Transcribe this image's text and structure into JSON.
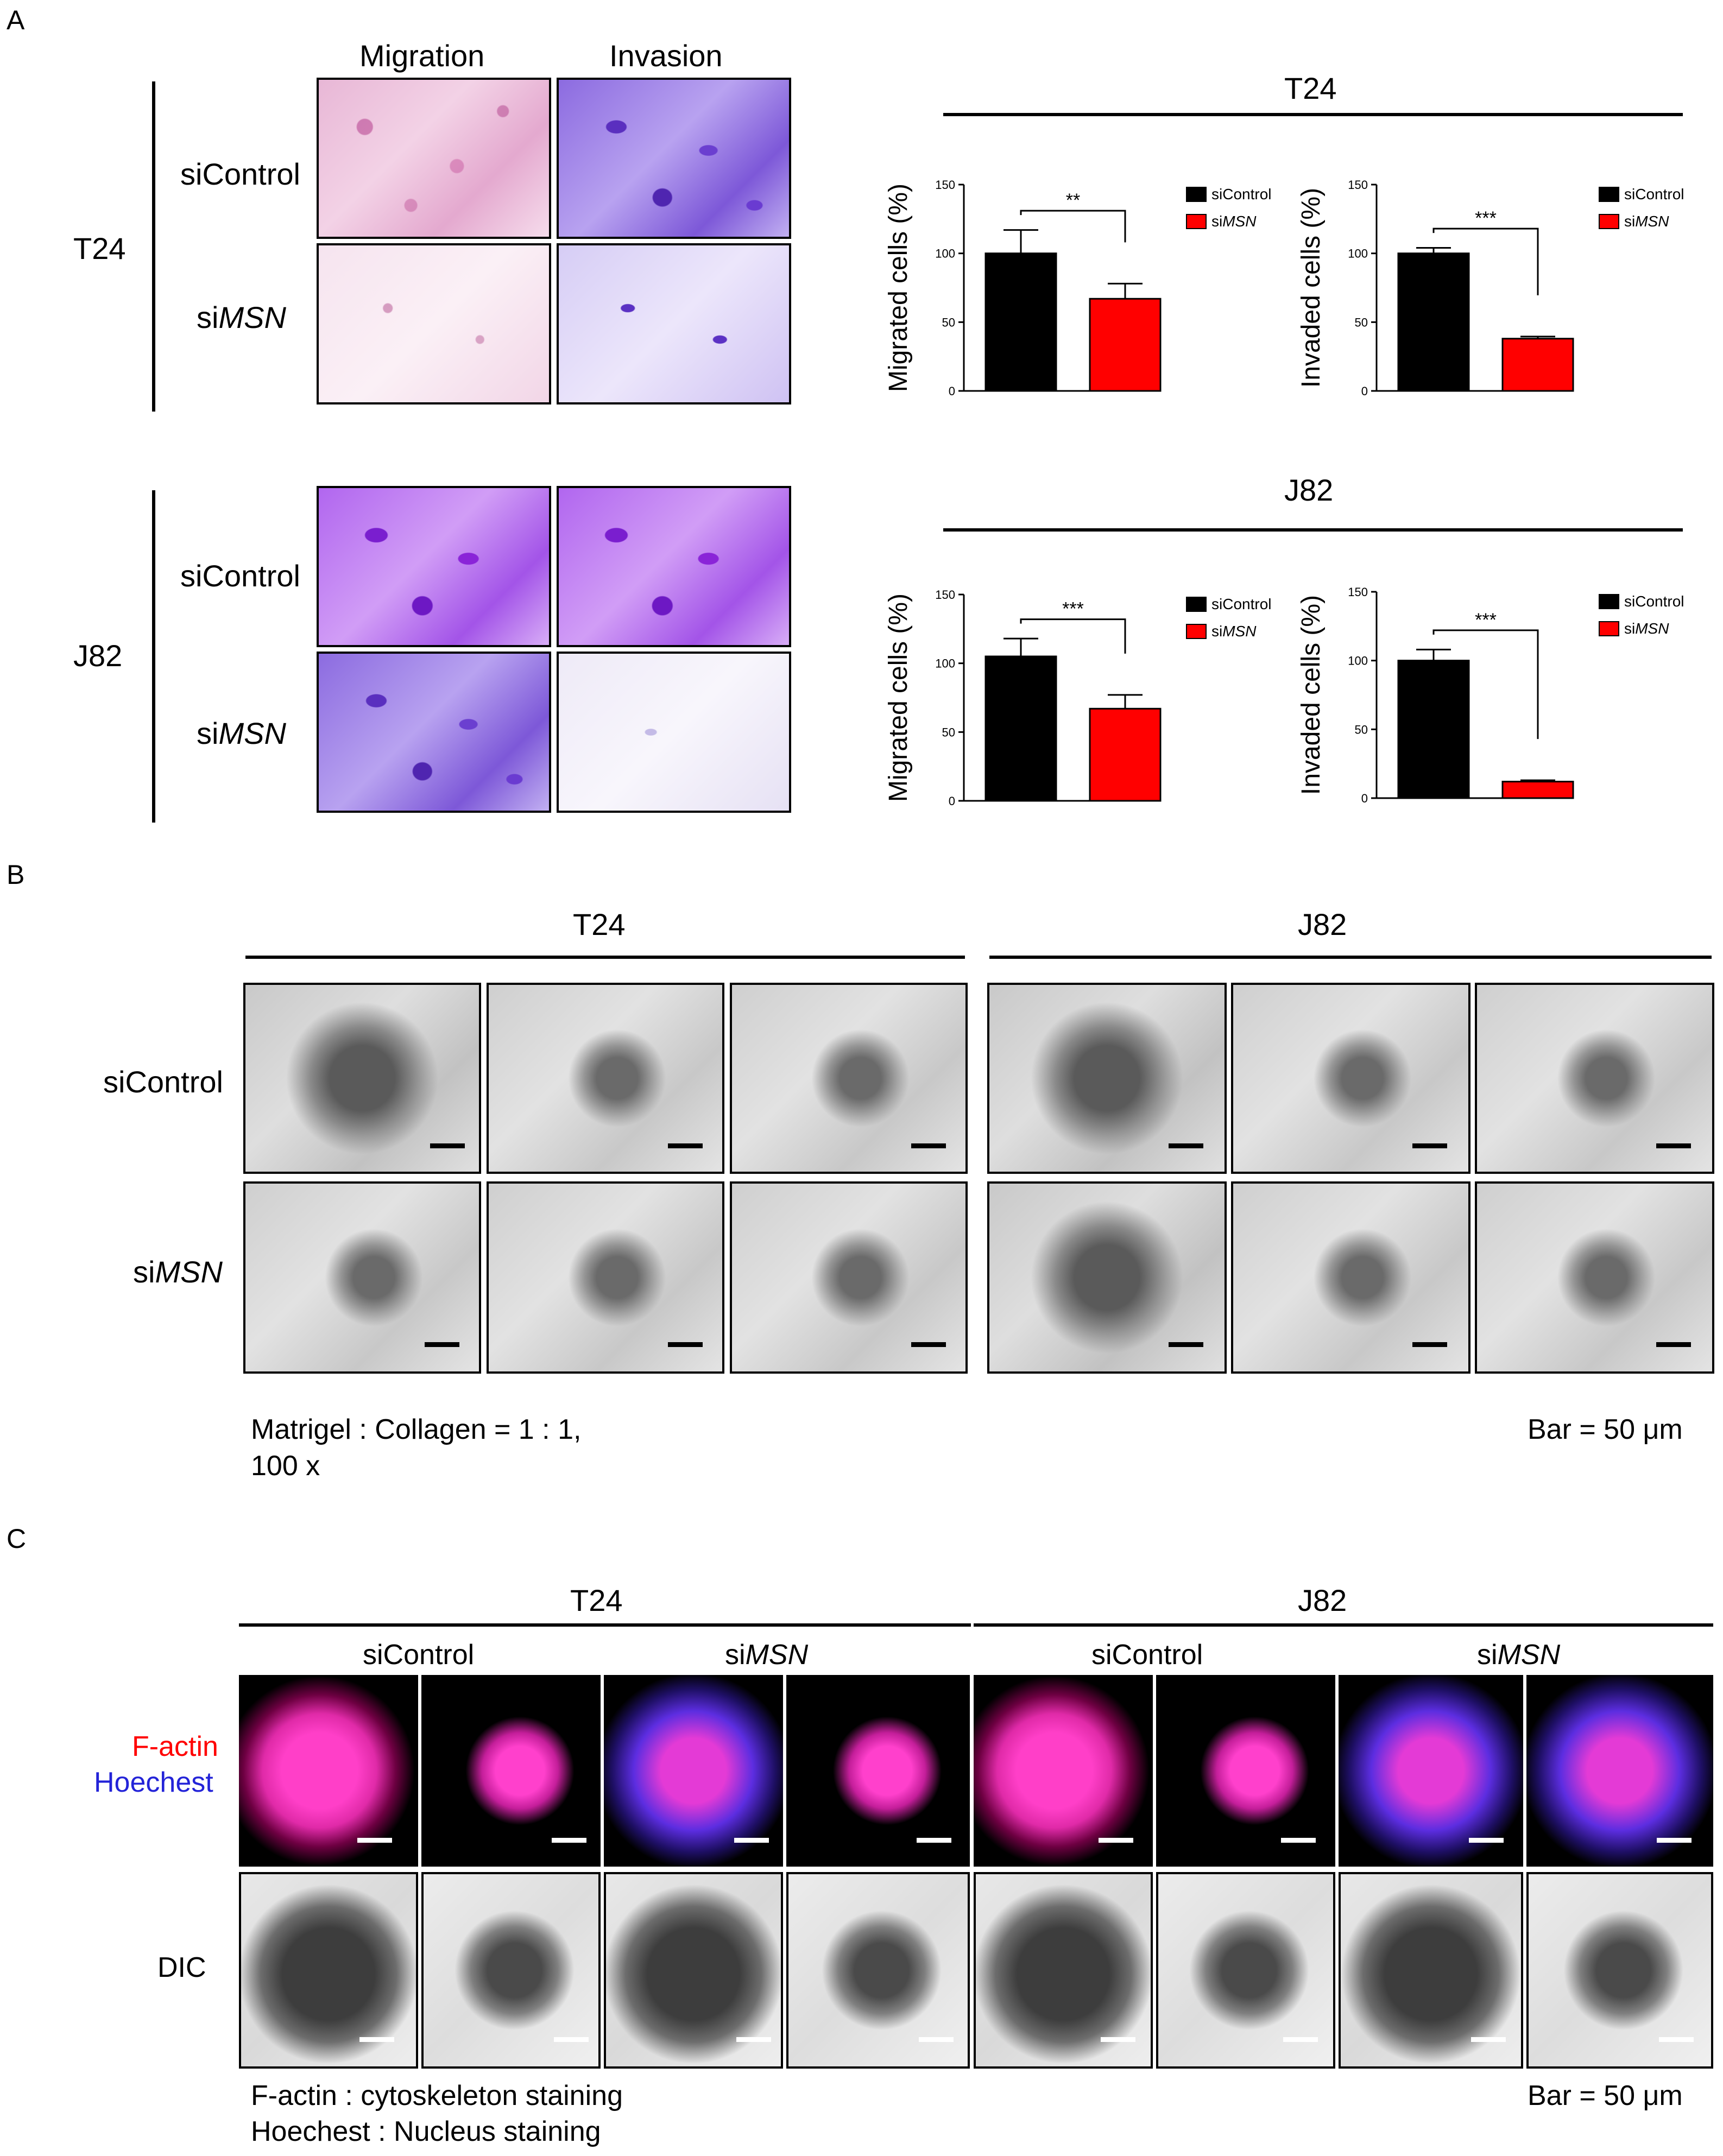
{
  "panels": {
    "a": "A",
    "b": "B",
    "c": "C"
  },
  "panel_a": {
    "col_headers": [
      "Migration",
      "Invasion"
    ],
    "cell_lines": [
      "T24",
      "J82"
    ],
    "row_labels": [
      "siControl",
      "siMSN"
    ],
    "row_label_prefix": "si",
    "row_label_italic": "MSN"
  },
  "panel_b": {
    "cell_lines": [
      "T24",
      "J82"
    ],
    "row_labels": [
      "siControl",
      "siMSN"
    ],
    "note_line1": "Matrigel : Collagen = 1 : 1,",
    "note_line2": "100 x",
    "bar": "Bar = 50 μm"
  },
  "panel_c": {
    "cell_lines": [
      "T24",
      "J82"
    ],
    "conditions": [
      "siControl",
      "siMSN",
      "siControl",
      "siMSN"
    ],
    "row_fl_red": "F-actin",
    "row_fl_blue": "Hoechest",
    "row_dic": "DIC",
    "note_line1": "F-actin : cytoskeleton staining",
    "note_line2": "Hoechest : Nucleus staining",
    "bar": "Bar = 50 μm"
  },
  "colors": {
    "control": "#000000",
    "msn": "#ff0000"
  },
  "chart_data": [
    {
      "type": "bar",
      "title": "T24",
      "ylabel": "Migrated cells (%)",
      "ylim": [
        0,
        150
      ],
      "yticks": [
        0,
        50,
        100,
        150
      ],
      "categories": [
        "siControl",
        "siMSN"
      ],
      "values": [
        100,
        67
      ],
      "errors": [
        17,
        11
      ],
      "significance": "**",
      "legend": [
        "siControl",
        "siMSN"
      ]
    },
    {
      "type": "bar",
      "title": "T24",
      "ylabel": "Invaded cells (%)",
      "ylim": [
        0,
        150
      ],
      "yticks": [
        0,
        50,
        100,
        150
      ],
      "categories": [
        "siControl",
        "siMSN"
      ],
      "values": [
        100,
        38
      ],
      "errors": [
        4,
        1.5
      ],
      "significance": "***",
      "legend": [
        "siControl",
        "siMSN"
      ]
    },
    {
      "type": "bar",
      "title": "J82",
      "ylabel": "Migrated cells (%)",
      "ylim": [
        0,
        150
      ],
      "yticks": [
        0,
        50,
        100,
        150
      ],
      "categories": [
        "siControl",
        "siMSN"
      ],
      "values": [
        105,
        67
      ],
      "errors": [
        13,
        10
      ],
      "significance": "***",
      "legend": [
        "siControl",
        "siMSN"
      ]
    },
    {
      "type": "bar",
      "title": "J82",
      "ylabel": "Invaded cells (%)",
      "ylim": [
        0,
        150
      ],
      "yticks": [
        0,
        50,
        100,
        150
      ],
      "categories": [
        "siControl",
        "siMSN"
      ],
      "values": [
        100,
        12
      ],
      "errors": [
        8,
        1
      ],
      "significance": "***",
      "legend": [
        "siControl",
        "siMSN"
      ]
    }
  ]
}
